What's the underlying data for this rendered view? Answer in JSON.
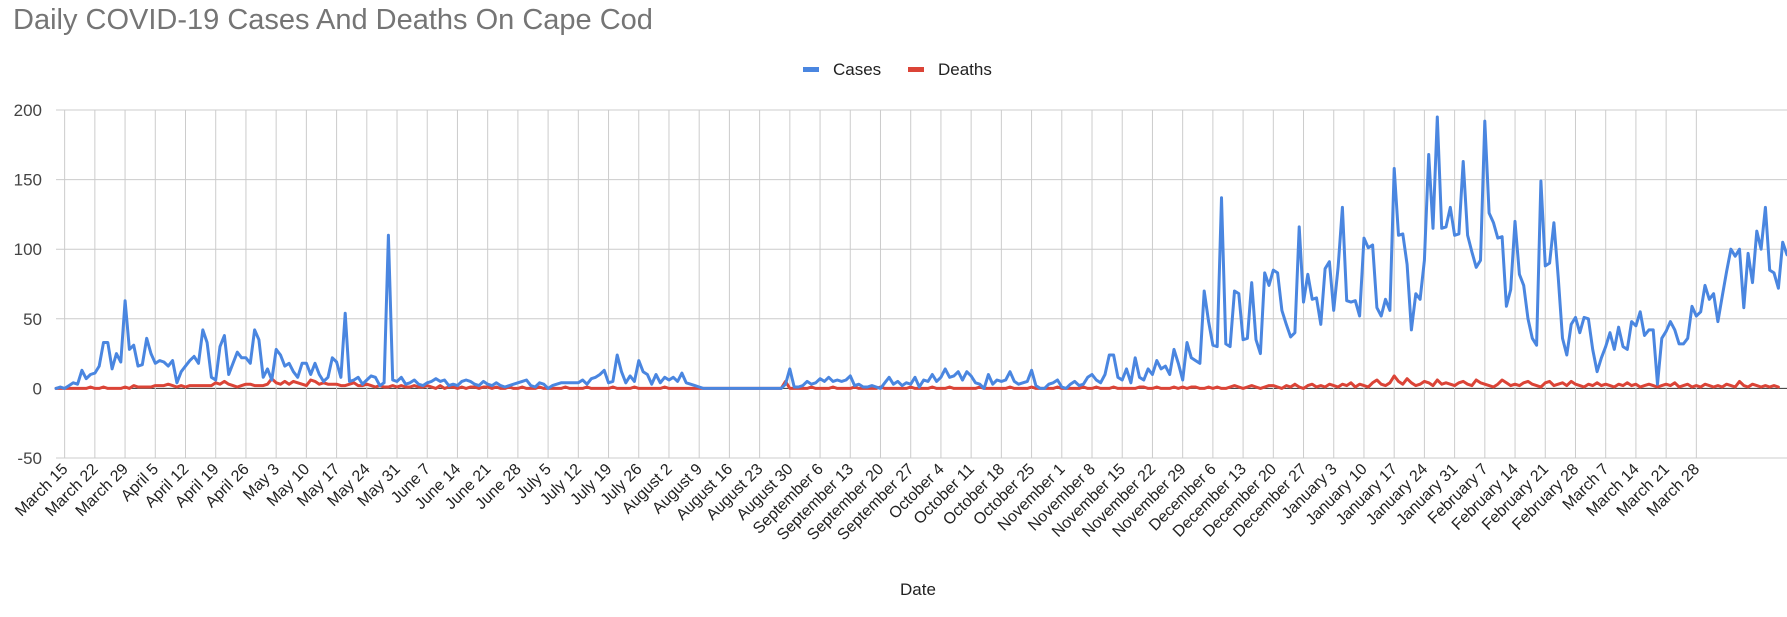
{
  "chart_data": {
    "type": "line",
    "title": "Daily COVID-19 Cases And Deaths On Cape Cod",
    "xlabel": "Date",
    "ylabel": "",
    "ylim": [
      -50,
      200
    ],
    "yticks": [
      200,
      150,
      100,
      50,
      0,
      -50
    ],
    "grid": true,
    "legend_position": "top",
    "x_range": [
      "March 13",
      "March 31"
    ],
    "x_tick_labels": [
      "March 15",
      "March 22",
      "March 29",
      "April 5",
      "April 12",
      "April 19",
      "April 26",
      "May 3",
      "May 10",
      "May 17",
      "May 24",
      "May 31",
      "June 7",
      "June 14",
      "June 21",
      "June 28",
      "July 5",
      "July 12",
      "July 19",
      "July 26",
      "August 2",
      "August 9",
      "August 16",
      "August 23",
      "August 30",
      "September 6",
      "September 13",
      "September 20",
      "September 27",
      "October 4",
      "October 11",
      "October 18",
      "October 25",
      "November 1",
      "November 8",
      "November 15",
      "November 22",
      "November 29",
      "December 6",
      "December 13",
      "December 20",
      "December 27",
      "January 3",
      "January 10",
      "January 17",
      "January 24",
      "January 31",
      "February 7",
      "February 14",
      "February 21",
      "February 28",
      "March 7",
      "March 14",
      "March 21",
      "March 28"
    ],
    "series": [
      {
        "name": "Cases",
        "color": "#4a86e0",
        "values": [
          0,
          1,
          0,
          2,
          4,
          3,
          13,
          7,
          10,
          11,
          16,
          33,
          33,
          14,
          25,
          19,
          63,
          28,
          31,
          16,
          17,
          36,
          25,
          18,
          20,
          19,
          16,
          20,
          4,
          12,
          16,
          20,
          23,
          18,
          42,
          33,
          8,
          6,
          30,
          38,
          10,
          18,
          26,
          22,
          22,
          18,
          42,
          35,
          8,
          14,
          6,
          28,
          24,
          16,
          18,
          12,
          8,
          18,
          18,
          10,
          18,
          10,
          5,
          8,
          22,
          19,
          8,
          54,
          5,
          6,
          8,
          3,
          6,
          9,
          8,
          2,
          4,
          110,
          6,
          5,
          8,
          3,
          4,
          6,
          3,
          2,
          4,
          5,
          7,
          5,
          6,
          2,
          3,
          2,
          5,
          6,
          5,
          3,
          2,
          5,
          3,
          2,
          4,
          2,
          1,
          2,
          3,
          4,
          5,
          6,
          2,
          1,
          4,
          3,
          0,
          2,
          3,
          4,
          4,
          4,
          4,
          4,
          6,
          3,
          7,
          8,
          10,
          13,
          4,
          5,
          24,
          12,
          4,
          9,
          5,
          20,
          12,
          10,
          3,
          10,
          4,
          8,
          6,
          8,
          5,
          11,
          4,
          3,
          2,
          1,
          0,
          0,
          0,
          0,
          0,
          0,
          0,
          0,
          0,
          0,
          0,
          0,
          0,
          0,
          0,
          0,
          0,
          0,
          0,
          3,
          14,
          1,
          1,
          2,
          5,
          3,
          4,
          7,
          5,
          8,
          5,
          6,
          5,
          6,
          9,
          2,
          3,
          1,
          1,
          2,
          1,
          0,
          4,
          8,
          3,
          5,
          2,
          4,
          3,
          8,
          1,
          6,
          5,
          10,
          5,
          8,
          14,
          8,
          9,
          12,
          6,
          12,
          9,
          4,
          3,
          0,
          10,
          3,
          6,
          5,
          6,
          12,
          5,
          3,
          4,
          5,
          13,
          2,
          0,
          0,
          3,
          4,
          6,
          1,
          0,
          3,
          5,
          2,
          3,
          8,
          10,
          6,
          4,
          10,
          24,
          24,
          8,
          6,
          14,
          4,
          22,
          8,
          6,
          14,
          10,
          20,
          14,
          16,
          10,
          28,
          18,
          6,
          33,
          22,
          20,
          18,
          70,
          48,
          31,
          30,
          137,
          32,
          30,
          70,
          68,
          35,
          36,
          76,
          35,
          25,
          83,
          74,
          85,
          83,
          56,
          46,
          37,
          40,
          116,
          62,
          82,
          64,
          65,
          46,
          86,
          91,
          56,
          87,
          130,
          63,
          62,
          63,
          52,
          108,
          101,
          103,
          58,
          52,
          64,
          56,
          158,
          110,
          111,
          89,
          42,
          68,
          64,
          92,
          168,
          115,
          195,
          115,
          116,
          130,
          110,
          111,
          163,
          110,
          98,
          87,
          92,
          192,
          126,
          119,
          108,
          109,
          59,
          71,
          120,
          82,
          74,
          50,
          36,
          31,
          149,
          88,
          90,
          119,
          80,
          36,
          24,
          46,
          51,
          40,
          51,
          50,
          28,
          12,
          22,
          30,
          40,
          28,
          44,
          30,
          28,
          48,
          45,
          55,
          38,
          42,
          42,
          3,
          36,
          41,
          48,
          42,
          32,
          32,
          36,
          59,
          52,
          55,
          74,
          64,
          68,
          48,
          66,
          84,
          100,
          95,
          100,
          58,
          97,
          76,
          113,
          100,
          130,
          85,
          83,
          72,
          105,
          96
        ]
      },
      {
        "name": "Deaths",
        "color": "#db4437",
        "values": [
          0,
          0,
          0,
          0,
          0,
          0,
          0,
          0,
          1,
          0,
          0,
          1,
          0,
          0,
          0,
          0,
          1,
          0,
          2,
          1,
          1,
          1,
          1,
          2,
          2,
          2,
          3,
          2,
          1,
          2,
          1,
          2,
          2,
          2,
          2,
          2,
          2,
          4,
          3,
          5,
          3,
          2,
          1,
          2,
          3,
          3,
          2,
          2,
          2,
          3,
          7,
          4,
          3,
          5,
          3,
          5,
          4,
          3,
          2,
          6,
          5,
          3,
          4,
          3,
          3,
          3,
          2,
          2,
          3,
          4,
          2,
          2,
          3,
          2,
          1,
          2,
          1,
          1,
          2,
          1,
          2,
          1,
          1,
          2,
          1,
          1,
          2,
          1,
          0,
          2,
          0,
          1,
          1,
          0,
          1,
          0,
          1,
          1,
          0,
          1,
          1,
          0,
          1,
          0,
          0,
          1,
          0,
          0,
          1,
          0,
          0,
          0,
          1,
          0,
          0,
          0,
          0,
          0,
          1,
          0,
          0,
          0,
          0,
          1,
          0,
          0,
          0,
          0,
          0,
          1,
          0,
          0,
          0,
          0,
          1,
          0,
          0,
          0,
          0,
          0,
          0,
          1,
          0,
          0,
          0,
          0,
          0,
          0,
          0,
          0,
          0,
          0,
          0,
          0,
          0,
          0,
          0,
          0,
          0,
          0,
          0,
          0,
          0,
          0,
          0,
          0,
          0,
          0,
          0,
          5,
          0,
          0,
          0,
          0,
          0,
          1,
          0,
          0,
          0,
          0,
          1,
          0,
          0,
          0,
          0,
          1,
          0,
          0,
          0,
          0,
          0,
          1,
          0,
          0,
          0,
          0,
          0,
          0,
          1,
          0,
          0,
          0,
          0,
          1,
          0,
          0,
          0,
          1,
          0,
          0,
          0,
          0,
          0,
          0,
          1,
          0,
          0,
          0,
          0,
          0,
          0,
          1,
          0,
          0,
          0,
          0,
          1,
          0,
          0,
          0,
          0,
          0,
          1,
          0,
          0,
          0,
          0,
          0,
          1,
          0,
          0,
          1,
          0,
          0,
          0,
          1,
          0,
          0,
          0,
          0,
          0,
          1,
          1,
          0,
          0,
          1,
          0,
          0,
          0,
          1,
          0,
          1,
          0,
          1,
          1,
          0,
          0,
          1,
          0,
          1,
          0,
          0,
          1,
          2,
          1,
          0,
          1,
          2,
          1,
          0,
          1,
          2,
          2,
          1,
          0,
          2,
          1,
          3,
          1,
          0,
          2,
          3,
          1,
          2,
          1,
          3,
          2,
          1,
          3,
          2,
          4,
          1,
          3,
          2,
          1,
          4,
          6,
          3,
          2,
          4,
          9,
          5,
          3,
          7,
          4,
          2,
          3,
          5,
          4,
          2,
          6,
          3,
          4,
          3,
          2,
          4,
          5,
          3,
          2,
          6,
          4,
          3,
          2,
          1,
          3,
          6,
          4,
          2,
          3,
          2,
          4,
          5,
          3,
          2,
          1,
          4,
          5,
          2,
          3,
          4,
          2,
          5,
          3,
          2,
          1,
          3,
          2,
          4,
          2,
          3,
          2,
          1,
          3,
          2,
          4,
          2,
          3,
          1,
          2,
          3,
          2,
          1,
          2,
          3,
          2,
          4,
          1,
          2,
          3,
          1,
          2,
          1,
          3,
          2,
          1,
          2,
          1,
          3,
          2,
          1,
          5,
          2,
          1,
          3,
          2,
          1,
          2,
          1,
          2,
          1
        ]
      }
    ]
  }
}
